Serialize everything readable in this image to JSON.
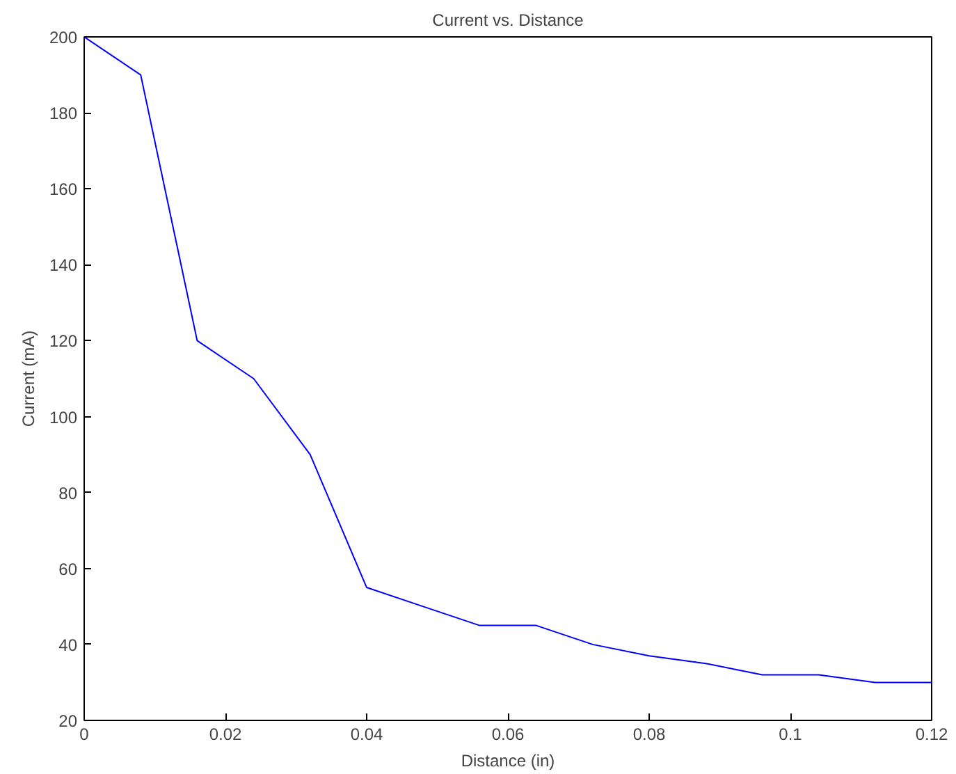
{
  "chart_data": {
    "type": "line",
    "title": "Current vs. Distance",
    "xlabel": "Distance (in)",
    "ylabel": "Current (mA)",
    "x": [
      0,
      0.008,
      0.016,
      0.024,
      0.032,
      0.04,
      0.048,
      0.056,
      0.064,
      0.072,
      0.08,
      0.088,
      0.096,
      0.104,
      0.112,
      0.12
    ],
    "series": [
      {
        "color": "#0000ff",
        "values": [
          200,
          190,
          120,
          110,
          90,
          55,
          50,
          45,
          45,
          40,
          37,
          35,
          32,
          32,
          30,
          30
        ]
      }
    ],
    "xlim": [
      0,
      0.12
    ],
    "ylim": [
      20,
      200
    ],
    "xticks": [
      0,
      0.02,
      0.04,
      0.06,
      0.08,
      0.1,
      0.12
    ],
    "yticks": [
      20,
      40,
      60,
      80,
      100,
      120,
      140,
      160,
      180,
      200
    ],
    "grid": false,
    "line_style": "solid"
  }
}
